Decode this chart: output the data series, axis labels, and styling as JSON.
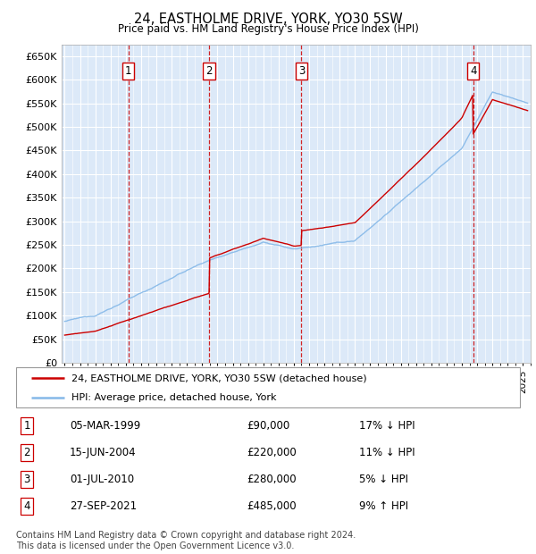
{
  "title": "24, EASTHOLME DRIVE, YORK, YO30 5SW",
  "subtitle": "Price paid vs. HM Land Registry's House Price Index (HPI)",
  "legend_label_red": "24, EASTHOLME DRIVE, YORK, YO30 5SW (detached house)",
  "legend_label_blue": "HPI: Average price, detached house, York",
  "footer": "Contains HM Land Registry data © Crown copyright and database right 2024.\nThis data is licensed under the Open Government Licence v3.0.",
  "transactions": [
    {
      "num": 1,
      "date": "05-MAR-1999",
      "price": 90000,
      "pct": "17%",
      "dir": "↓",
      "year": 1999.17
    },
    {
      "num": 2,
      "date": "15-JUN-2004",
      "price": 220000,
      "pct": "11%",
      "dir": "↓",
      "year": 2004.45
    },
    {
      "num": 3,
      "date": "01-JUL-2010",
      "price": 280000,
      "pct": "5%",
      "dir": "↓",
      "year": 2010.5
    },
    {
      "num": 4,
      "date": "27-SEP-2021",
      "price": 485000,
      "pct": "9%",
      "dir": "↑",
      "year": 2021.74
    }
  ],
  "ylim": [
    0,
    675000
  ],
  "xlim": [
    1994.8,
    2025.5
  ],
  "yticks": [
    0,
    50000,
    100000,
    150000,
    200000,
    250000,
    300000,
    350000,
    400000,
    450000,
    500000,
    550000,
    600000,
    650000
  ],
  "ytick_labels": [
    "£0",
    "£50K",
    "£100K",
    "£150K",
    "£200K",
    "£250K",
    "£300K",
    "£350K",
    "£400K",
    "£450K",
    "£500K",
    "£550K",
    "£600K",
    "£650K"
  ],
  "xticks": [
    1995,
    1996,
    1997,
    1998,
    1999,
    2000,
    2001,
    2002,
    2003,
    2004,
    2005,
    2006,
    2007,
    2008,
    2009,
    2010,
    2011,
    2012,
    2013,
    2014,
    2015,
    2016,
    2017,
    2018,
    2019,
    2020,
    2021,
    2022,
    2023,
    2024,
    2025
  ],
  "bg_color": "#dce9f8",
  "grid_color": "#ffffff",
  "red_color": "#cc0000",
  "blue_color": "#85b8e8"
}
